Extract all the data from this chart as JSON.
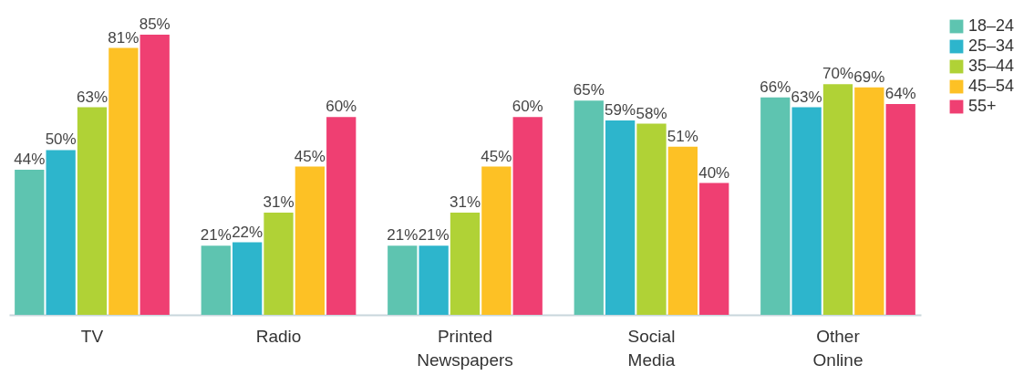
{
  "chart_data": {
    "type": "bar",
    "categories": [
      "TV",
      "Radio",
      "Printed Newspapers",
      "Social Media",
      "Other Online"
    ],
    "series": [
      {
        "name": "18–24",
        "color": "#5ec4b0",
        "values": [
          44,
          21,
          21,
          65,
          66
        ],
        "value_labels": [
          "44%",
          "21%",
          "21%",
          "65%",
          "66%"
        ]
      },
      {
        "name": "25–34",
        "color": "#2db5cc",
        "values": [
          50,
          22,
          21,
          59,
          63
        ],
        "value_labels": [
          "50%",
          "22%",
          "21%",
          "59%",
          "63%"
        ]
      },
      {
        "name": "35–44",
        "color": "#b0d236",
        "values": [
          63,
          31,
          31,
          58,
          70
        ],
        "value_labels": [
          "63%",
          "31%",
          "31%",
          "58%",
          "70%"
        ]
      },
      {
        "name": "45–54",
        "color": "#fdc125",
        "values": [
          81,
          45,
          45,
          51,
          69
        ],
        "value_labels": [
          "81%",
          "45%",
          "45%",
          "51%",
          "69%"
        ]
      },
      {
        "name": "55+",
        "color": "#ef3f72",
        "values": [
          85,
          60,
          60,
          40,
          64
        ],
        "value_labels": [
          "85%",
          "60%",
          "60%",
          "40%",
          "64%"
        ]
      }
    ],
    "legend": "right",
    "grid": false
  }
}
